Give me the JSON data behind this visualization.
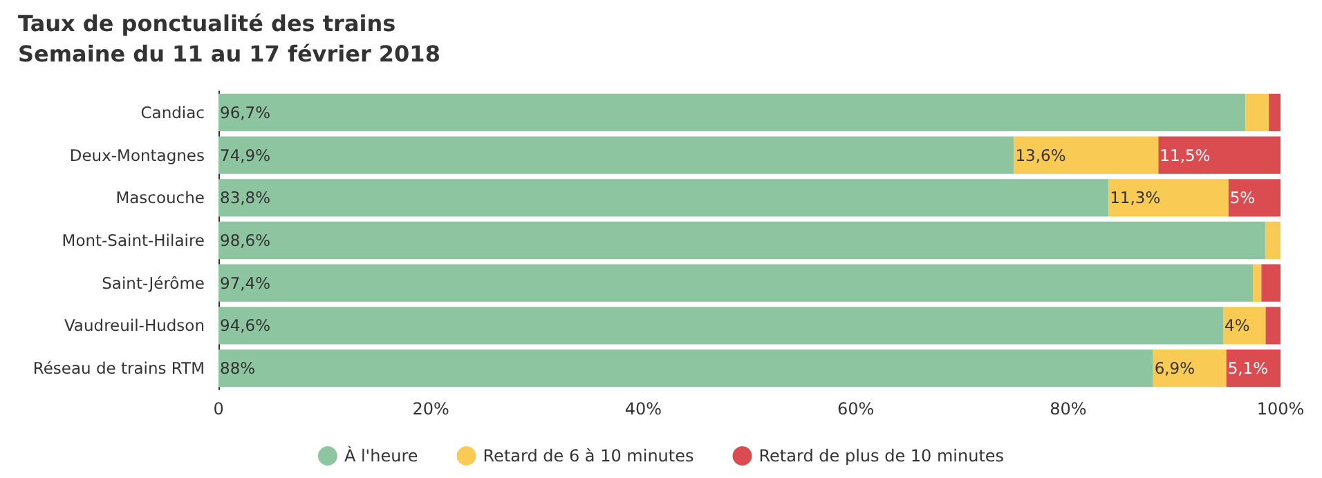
{
  "chart_data": {
    "type": "bar",
    "title": "Taux de ponctualité des trains",
    "subtitle": "Semaine du 11 au 17 février 2018",
    "orientation": "horizontal",
    "stacked": true,
    "categories": [
      "Candiac",
      "Deux-Montagnes",
      "Mascouche",
      "Mont-Saint-Hilaire",
      "Saint-Jérôme",
      "Vaudreuil-Hudson",
      "Réseau de trains RTM"
    ],
    "series": [
      {
        "name": "À l'heure",
        "color": "#8cc5a0",
        "values": [
          96.7,
          74.9,
          83.8,
          98.6,
          97.4,
          94.6,
          88
        ],
        "value_labels": [
          "96,7%",
          "74,9%",
          "83,8%",
          "98,6%",
          "97,4%",
          "94,6%",
          "88%"
        ]
      },
      {
        "name": "Retard de 6 à 10 minutes",
        "color": "#f9cb54",
        "values": [
          2.2,
          13.6,
          11.3,
          1.4,
          0.8,
          4,
          6.9
        ],
        "value_labels": [
          null,
          "13,6%",
          "11,3%",
          null,
          null,
          "4%",
          "6,9%"
        ]
      },
      {
        "name": "Retard de plus de 10 minutes",
        "color": "#da4c4f",
        "values": [
          1.1,
          11.5,
          5,
          null,
          1.8,
          1.4,
          5.1
        ],
        "value_labels": [
          null,
          "11,5%",
          "5%",
          null,
          null,
          null,
          "5,1%"
        ]
      }
    ],
    "xlim": [
      0,
      100
    ],
    "xticks": [
      0,
      {
        "value": 20,
        "label": "20%"
      },
      {
        "value": 40,
        "label": "40%"
      },
      {
        "value": 60,
        "label": "60%"
      },
      {
        "value": 80,
        "label": "80%"
      },
      {
        "value": 100,
        "label": "100%"
      }
    ],
    "grid": false,
    "legend": "bottom"
  }
}
